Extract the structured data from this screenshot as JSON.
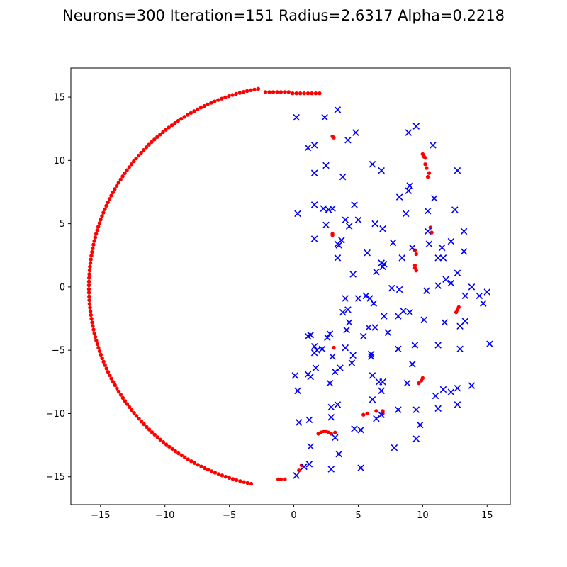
{
  "chart_data": {
    "type": "scatter",
    "title": "Neurons=300 Iteration=151 Radius=2.6317 Alpha=0.2218",
    "xlabel": "",
    "ylabel": "",
    "xlim": [
      -17.3,
      16.8
    ],
    "ylim": [
      -17.2,
      17.3
    ],
    "x_ticks": [
      -15,
      -10,
      -5,
      0,
      5,
      10,
      15
    ],
    "y_ticks": [
      -15,
      -10,
      -5,
      0,
      5,
      10,
      15
    ],
    "x_tick_labels": [
      "−15",
      "−10",
      "−5",
      "0",
      "5",
      "10",
      "15"
    ],
    "y_tick_labels": [
      "−15",
      "−10",
      "−5",
      "0",
      "5",
      "10",
      "15"
    ],
    "grid": false,
    "colors": {
      "neurons": "#ff0000",
      "data": "#0000ff"
    },
    "neuron_arc": {
      "center": [
        0,
        0
      ],
      "radius": 15.9,
      "start_deg": 100,
      "end_deg": 258,
      "count": 150
    },
    "neuron_series": [
      {
        "x": -2.2,
        "y": 15.4
      },
      {
        "x": -1.9,
        "y": 15.4
      },
      {
        "x": -1.6,
        "y": 15.4
      },
      {
        "x": -1.3,
        "y": 15.4
      },
      {
        "x": -1.0,
        "y": 15.4
      },
      {
        "x": -0.7,
        "y": 15.4
      },
      {
        "x": -0.4,
        "y": 15.4
      },
      {
        "x": -0.1,
        "y": 15.3
      },
      {
        "x": 0.2,
        "y": 15.3
      },
      {
        "x": 0.5,
        "y": 15.3
      },
      {
        "x": 0.8,
        "y": 15.3
      },
      {
        "x": 1.1,
        "y": 15.3
      },
      {
        "x": 1.4,
        "y": 15.3
      },
      {
        "x": 1.7,
        "y": 15.3
      },
      {
        "x": 2.0,
        "y": 15.3
      },
      {
        "x": 3.0,
        "y": 11.9
      },
      {
        "x": 3.1,
        "y": 11.8
      },
      {
        "x": 10.0,
        "y": 10.5
      },
      {
        "x": 10.1,
        "y": 10.3
      },
      {
        "x": 10.2,
        "y": 10.2
      },
      {
        "x": 10.2,
        "y": 9.7
      },
      {
        "x": 10.3,
        "y": 9.4
      },
      {
        "x": 10.5,
        "y": 9.0
      },
      {
        "x": 10.4,
        "y": 8.7
      },
      {
        "x": 10.6,
        "y": 4.7
      },
      {
        "x": 10.7,
        "y": 4.3
      },
      {
        "x": 3.0,
        "y": 4.2
      },
      {
        "x": 3.0,
        "y": 4.1
      },
      {
        "x": 9.4,
        "y": 2.9
      },
      {
        "x": 9.5,
        "y": 2.6
      },
      {
        "x": 9.4,
        "y": 1.7
      },
      {
        "x": 9.4,
        "y": 1.5
      },
      {
        "x": 9.5,
        "y": 1.3
      },
      {
        "x": 12.8,
        "y": -1.6
      },
      {
        "x": 12.7,
        "y": -1.8
      },
      {
        "x": 12.6,
        "y": -2.0
      },
      {
        "x": 3.1,
        "y": -4.8
      },
      {
        "x": 10.0,
        "y": -7.2
      },
      {
        "x": 9.9,
        "y": -7.4
      },
      {
        "x": 9.7,
        "y": -7.6
      },
      {
        "x": 5.4,
        "y": -10.1
      },
      {
        "x": 5.7,
        "y": -10.0
      },
      {
        "x": 6.4,
        "y": -9.8
      },
      {
        "x": 6.9,
        "y": -9.8
      },
      {
        "x": 6.9,
        "y": -10.0
      },
      {
        "x": 1.9,
        "y": -11.6
      },
      {
        "x": 2.1,
        "y": -11.5
      },
      {
        "x": 2.3,
        "y": -11.4
      },
      {
        "x": 2.5,
        "y": -11.4
      },
      {
        "x": 2.7,
        "y": -11.5
      },
      {
        "x": 2.9,
        "y": -11.6
      },
      {
        "x": 3.2,
        "y": -11.5
      },
      {
        "x": 0.6,
        "y": -14.1
      },
      {
        "x": 0.4,
        "y": -14.5
      },
      {
        "x": -1.2,
        "y": -15.2
      },
      {
        "x": -1.0,
        "y": -15.2
      },
      {
        "x": -0.7,
        "y": -15.2
      }
    ],
    "data_series": [
      {
        "x": 2.4,
        "y": 13.4
      },
      {
        "x": 3.4,
        "y": 14.0
      },
      {
        "x": 0.2,
        "y": 13.4
      },
      {
        "x": 4.8,
        "y": 12.2
      },
      {
        "x": 4.2,
        "y": 11.6
      },
      {
        "x": 1.1,
        "y": 11.0
      },
      {
        "x": 1.6,
        "y": 11.2
      },
      {
        "x": 9.5,
        "y": 12.7
      },
      {
        "x": 8.9,
        "y": 12.2
      },
      {
        "x": 10.8,
        "y": 11.2
      },
      {
        "x": 6.1,
        "y": 9.7
      },
      {
        "x": 6.8,
        "y": 9.2
      },
      {
        "x": 2.5,
        "y": 9.6
      },
      {
        "x": 1.6,
        "y": 9.0
      },
      {
        "x": 3.8,
        "y": 8.7
      },
      {
        "x": 12.7,
        "y": 9.2
      },
      {
        "x": 9.0,
        "y": 8.0
      },
      {
        "x": 8.9,
        "y": 7.6
      },
      {
        "x": 8.2,
        "y": 7.1
      },
      {
        "x": 10.9,
        "y": 7.0
      },
      {
        "x": 1.6,
        "y": 6.5
      },
      {
        "x": 2.3,
        "y": 6.2
      },
      {
        "x": 2.7,
        "y": 6.1
      },
      {
        "x": 3.0,
        "y": 6.2
      },
      {
        "x": 4.7,
        "y": 6.5
      },
      {
        "x": 0.3,
        "y": 5.8
      },
      {
        "x": 8.7,
        "y": 5.8
      },
      {
        "x": 10.4,
        "y": 6.0
      },
      {
        "x": 12.5,
        "y": 6.1
      },
      {
        "x": 4.0,
        "y": 5.3
      },
      {
        "x": 4.3,
        "y": 4.8
      },
      {
        "x": 5.0,
        "y": 5.3
      },
      {
        "x": 2.5,
        "y": 4.9
      },
      {
        "x": 6.3,
        "y": 5.0
      },
      {
        "x": 6.9,
        "y": 4.6
      },
      {
        "x": 10.4,
        "y": 4.4
      },
      {
        "x": 13.2,
        "y": 4.4
      },
      {
        "x": 1.6,
        "y": 3.8
      },
      {
        "x": 3.4,
        "y": 3.4
      },
      {
        "x": 3.7,
        "y": 3.7
      },
      {
        "x": 3.5,
        "y": 3.3
      },
      {
        "x": 7.7,
        "y": 3.5
      },
      {
        "x": 10.5,
        "y": 3.4
      },
      {
        "x": 11.5,
        "y": 3.1
      },
      {
        "x": 12.2,
        "y": 3.6
      },
      {
        "x": 9.2,
        "y": 3.1
      },
      {
        "x": 3.4,
        "y": 2.3
      },
      {
        "x": 5.7,
        "y": 2.7
      },
      {
        "x": 8.4,
        "y": 2.3
      },
      {
        "x": 11.2,
        "y": 2.3
      },
      {
        "x": 11.6,
        "y": 2.3
      },
      {
        "x": 13.2,
        "y": 2.8
      },
      {
        "x": 6.8,
        "y": 1.9
      },
      {
        "x": 7.0,
        "y": 1.8
      },
      {
        "x": 6.9,
        "y": 1.6
      },
      {
        "x": 4.6,
        "y": 1.0
      },
      {
        "x": 6.4,
        "y": 1.2
      },
      {
        "x": 12.7,
        "y": 1.1
      },
      {
        "x": 11.8,
        "y": 0.6
      },
      {
        "x": 7.6,
        "y": -0.1
      },
      {
        "x": 8.2,
        "y": -0.2
      },
      {
        "x": 10.3,
        "y": -0.3
      },
      {
        "x": 11.2,
        "y": 0.1
      },
      {
        "x": 12.2,
        "y": 0.3
      },
      {
        "x": 13.8,
        "y": 0.0
      },
      {
        "x": 15.0,
        "y": -0.4
      },
      {
        "x": 14.4,
        "y": -0.7
      },
      {
        "x": 13.3,
        "y": -0.7
      },
      {
        "x": 14.7,
        "y": -1.3
      },
      {
        "x": 4.0,
        "y": -0.9
      },
      {
        "x": 5.0,
        "y": -0.9
      },
      {
        "x": 5.6,
        "y": -0.7
      },
      {
        "x": 5.9,
        "y": -0.9
      },
      {
        "x": 6.2,
        "y": -1.3
      },
      {
        "x": 4.2,
        "y": -1.8
      },
      {
        "x": 3.8,
        "y": -2.0
      },
      {
        "x": 7.0,
        "y": -2.3
      },
      {
        "x": 8.1,
        "y": -2.3
      },
      {
        "x": 8.5,
        "y": -1.9
      },
      {
        "x": 9.0,
        "y": -2.0
      },
      {
        "x": 10.1,
        "y": -2.6
      },
      {
        "x": 11.7,
        "y": -2.8
      },
      {
        "x": 12.9,
        "y": -3.1
      },
      {
        "x": 13.3,
        "y": -2.7
      },
      {
        "x": 4.3,
        "y": -2.8
      },
      {
        "x": 4.1,
        "y": -3.4
      },
      {
        "x": 5.8,
        "y": -3.2
      },
      {
        "x": 6.3,
        "y": -3.2
      },
      {
        "x": 7.3,
        "y": -3.6
      },
      {
        "x": 5.4,
        "y": -3.9
      },
      {
        "x": 1.1,
        "y": -3.9
      },
      {
        "x": 1.3,
        "y": -3.8
      },
      {
        "x": 2.6,
        "y": -4.0
      },
      {
        "x": 2.8,
        "y": -3.7
      },
      {
        "x": 1.6,
        "y": -4.7
      },
      {
        "x": 1.6,
        "y": -5.2
      },
      {
        "x": 1.8,
        "y": -5.0
      },
      {
        "x": 2.2,
        "y": -4.9
      },
      {
        "x": 4.0,
        "y": -4.8
      },
      {
        "x": 3.0,
        "y": -5.5
      },
      {
        "x": 4.6,
        "y": -5.4
      },
      {
        "x": 6.0,
        "y": -5.3
      },
      {
        "x": 6.0,
        "y": -5.5
      },
      {
        "x": 8.1,
        "y": -4.9
      },
      {
        "x": 9.4,
        "y": -4.6
      },
      {
        "x": 11.2,
        "y": -4.6
      },
      {
        "x": 12.9,
        "y": -4.9
      },
      {
        "x": 15.2,
        "y": -4.5
      },
      {
        "x": 4.5,
        "y": -6.0
      },
      {
        "x": 3.6,
        "y": -6.4
      },
      {
        "x": 3.2,
        "y": -6.7
      },
      {
        "x": 1.7,
        "y": -6.4
      },
      {
        "x": 1.1,
        "y": -6.9
      },
      {
        "x": 1.3,
        "y": -7.1
      },
      {
        "x": 0.1,
        "y": -7.0
      },
      {
        "x": 0.3,
        "y": -8.2
      },
      {
        "x": 2.8,
        "y": -7.6
      },
      {
        "x": 6.1,
        "y": -7.0
      },
      {
        "x": 6.6,
        "y": -7.5
      },
      {
        "x": 6.9,
        "y": -7.5
      },
      {
        "x": 6.8,
        "y": -8.2
      },
      {
        "x": 8.8,
        "y": -7.6
      },
      {
        "x": 9.2,
        "y": -6.1
      },
      {
        "x": 11.0,
        "y": -8.6
      },
      {
        "x": 11.6,
        "y": -8.1
      },
      {
        "x": 12.2,
        "y": -8.3
      },
      {
        "x": 12.7,
        "y": -8.0
      },
      {
        "x": 13.8,
        "y": -7.8
      },
      {
        "x": 6.1,
        "y": -8.9
      },
      {
        "x": 2.9,
        "y": -9.5
      },
      {
        "x": 3.4,
        "y": -9.3
      },
      {
        "x": 2.9,
        "y": -10.3
      },
      {
        "x": 8.1,
        "y": -9.7
      },
      {
        "x": 9.5,
        "y": -9.7
      },
      {
        "x": 11.2,
        "y": -9.6
      },
      {
        "x": 12.7,
        "y": -9.3
      },
      {
        "x": 6.8,
        "y": -10.1
      },
      {
        "x": 6.4,
        "y": -10.4
      },
      {
        "x": 0.4,
        "y": -10.7
      },
      {
        "x": 1.2,
        "y": -10.5
      },
      {
        "x": 9.8,
        "y": -10.9
      },
      {
        "x": 4.7,
        "y": -11.2
      },
      {
        "x": 5.2,
        "y": -11.3
      },
      {
        "x": 3.2,
        "y": -11.9
      },
      {
        "x": 9.5,
        "y": -12.0
      },
      {
        "x": 1.3,
        "y": -12.6
      },
      {
        "x": 7.8,
        "y": -12.7
      },
      {
        "x": 3.5,
        "y": -13.2
      },
      {
        "x": 0.8,
        "y": -14.2
      },
      {
        "x": 1.2,
        "y": -14.0
      },
      {
        "x": 2.9,
        "y": -14.4
      },
      {
        "x": 5.2,
        "y": -14.3
      },
      {
        "x": 0.2,
        "y": -14.9
      }
    ]
  }
}
